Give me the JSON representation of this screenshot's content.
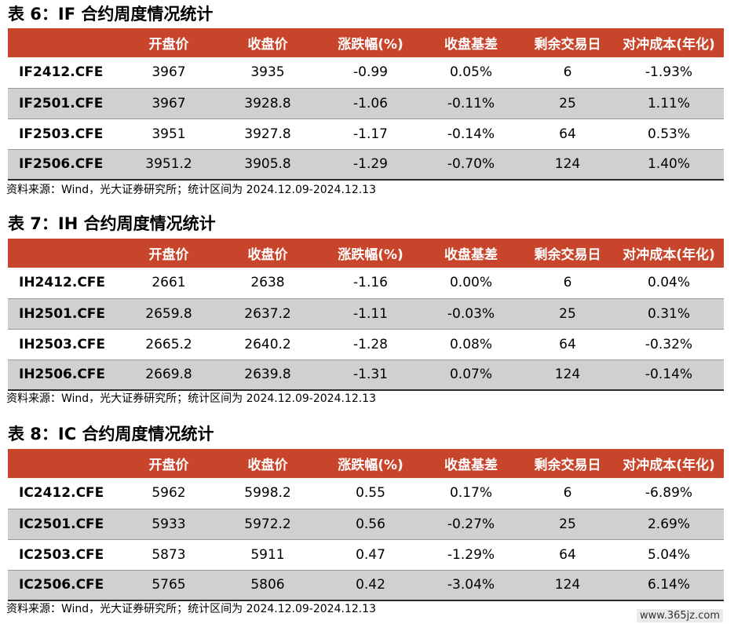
{
  "columns": [
    "",
    "开盘价",
    "收盘价",
    "涨跌幅(%)",
    "收盘基差",
    "剩余交易日",
    "对冲成本(年化)"
  ],
  "tables": [
    {
      "title": "表 6：IF 合约周度情况统计",
      "rows": [
        [
          "IF2412.CFE",
          "3967",
          "3935",
          "-0.99",
          "0.05%",
          "6",
          "-1.93%"
        ],
        [
          "IF2501.CFE",
          "3967",
          "3928.8",
          "-1.06",
          "-0.11%",
          "25",
          "1.11%"
        ],
        [
          "IF2503.CFE",
          "3951",
          "3927.8",
          "-1.17",
          "-0.14%",
          "64",
          "0.53%"
        ],
        [
          "IF2506.CFE",
          "3951.2",
          "3905.8",
          "-1.29",
          "-0.70%",
          "124",
          "1.40%"
        ]
      ],
      "source": "资料来源：Wind，光大证券研究所；统计区间为 2024.12.09-2024.12.13"
    },
    {
      "title": "表 7：IH 合约周度情况统计",
      "rows": [
        [
          "IH2412.CFE",
          "2661",
          "2638",
          "-1.16",
          "0.00%",
          "6",
          "0.04%"
        ],
        [
          "IH2501.CFE",
          "2659.8",
          "2637.2",
          "-1.11",
          "-0.03%",
          "25",
          "0.31%"
        ],
        [
          "IH2503.CFE",
          "2665.2",
          "2640.2",
          "-1.28",
          "0.08%",
          "64",
          "-0.32%"
        ],
        [
          "IH2506.CFE",
          "2669.8",
          "2639.8",
          "-1.31",
          "0.07%",
          "124",
          "-0.14%"
        ]
      ],
      "source": "资料来源：Wind，光大证券研究所；统计区间为 2024.12.09-2024.12.13"
    },
    {
      "title": "表 8：IC 合约周度情况统计",
      "rows": [
        [
          "IC2412.CFE",
          "5962",
          "5998.2",
          "0.55",
          "0.17%",
          "6",
          "-6.89%"
        ],
        [
          "IC2501.CFE",
          "5933",
          "5972.2",
          "0.56",
          "-0.27%",
          "25",
          "2.69%"
        ],
        [
          "IC2503.CFE",
          "5873",
          "5911",
          "0.47",
          "-1.29%",
          "64",
          "5.04%"
        ],
        [
          "IC2506.CFE",
          "5765",
          "5806",
          "0.42",
          "-3.04%",
          "124",
          "6.14%"
        ]
      ],
      "source": "资料来源：Wind，光大证券研究所；统计区间为 2024.12.09-2024.12.13"
    }
  ],
  "watermark": "www.365jz.com"
}
